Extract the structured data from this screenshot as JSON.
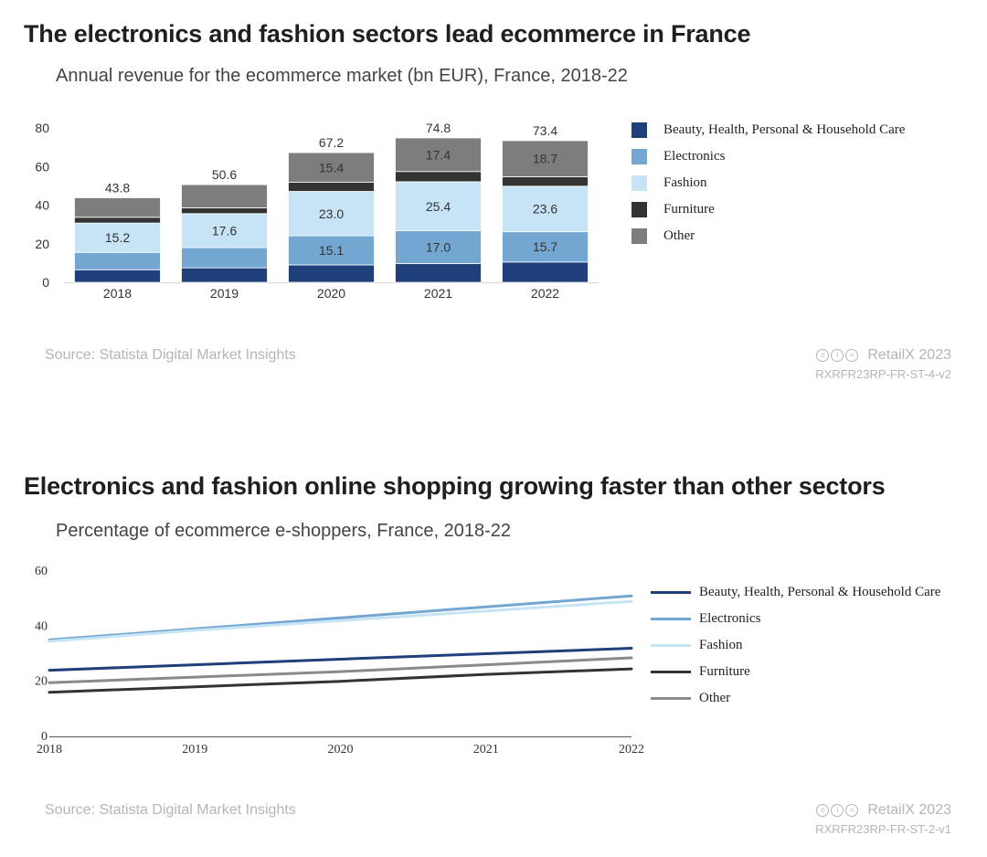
{
  "charts": [
    {
      "title": "The electronics and fashion sectors lead ecommerce in France",
      "subtitle": "Annual revenue for the ecommerce market (bn EUR), France, 2018-22",
      "source": "Source: Statista Digital Market Insights",
      "brand": "RetailX 2023",
      "code": "RXRFR23RP-FR-ST-4-v2"
    },
    {
      "title": "Electronics and fashion online shopping growing faster than other sectors",
      "subtitle": "Percentage of ecommerce e-shoppers, France, 2018-22",
      "source": "Source: Statista Digital Market Insights",
      "brand": "RetailX 2023",
      "code": "RXRFR23RP-FR-ST-2-v1"
    }
  ],
  "chart_data": [
    {
      "type": "bar",
      "stacked": true,
      "title": "The electronics and fashion sectors lead ecommerce in France",
      "subtitle": "Annual revenue for the ecommerce market (bn EUR), France, 2018-22",
      "categories": [
        "2018",
        "2019",
        "2020",
        "2021",
        "2022"
      ],
      "ylim": [
        0,
        80
      ],
      "yticks": [
        0,
        20,
        40,
        60,
        80
      ],
      "grid": false,
      "legend_position": "right",
      "totals": [
        43.8,
        50.6,
        67.2,
        74.8,
        73.4
      ],
      "total_labels": [
        "43.8",
        "50.6",
        "67.2",
        "74.8",
        "73.4"
      ],
      "series": [
        {
          "name": "Beauty, Health, Personal & Household Care",
          "color": "#1f3f7a",
          "values": [
            6.5,
            7.5,
            9.0,
            9.7,
            10.5
          ],
          "labels": [
            "",
            "",
            "",
            "",
            ""
          ]
        },
        {
          "name": "Electronics",
          "color": "#73a7d2",
          "values": [
            9.0,
            10.5,
            15.1,
            17.0,
            15.7
          ],
          "labels": [
            "",
            "",
            "15.1",
            "17.0",
            "15.7"
          ]
        },
        {
          "name": "Fashion",
          "color": "#c6e4f6",
          "values": [
            15.2,
            17.6,
            23.0,
            25.4,
            23.6
          ],
          "labels": [
            "15.2",
            "17.6",
            "23.0",
            "25.4",
            "23.6"
          ]
        },
        {
          "name": "Furniture",
          "color": "#333333",
          "values": [
            3.0,
            3.0,
            4.7,
            5.3,
            4.9
          ],
          "labels": [
            "",
            "",
            "",
            "",
            ""
          ]
        },
        {
          "name": "Other",
          "color": "#7d7d7d",
          "values": [
            10.1,
            12.0,
            15.4,
            17.4,
            18.7
          ],
          "labels": [
            "",
            "",
            "15.4",
            "17.4",
            "18.7"
          ]
        }
      ]
    },
    {
      "type": "line",
      "title": "Electronics and fashion online shopping growing faster than other sectors",
      "subtitle": "Percentage of ecommerce e-shoppers, France, 2018-22",
      "x": [
        "2018",
        "2019",
        "2020",
        "2021",
        "2022"
      ],
      "ylim": [
        0,
        60
      ],
      "yticks": [
        0,
        20,
        40,
        60
      ],
      "grid": false,
      "legend_position": "right",
      "series": [
        {
          "name": "Beauty, Health, Personal & Household Care",
          "color": "#1f3f7a",
          "values": [
            24,
            26,
            28,
            30,
            32
          ]
        },
        {
          "name": "Electronics",
          "color": "#73a7d2",
          "values": [
            35,
            39,
            43,
            47,
            51
          ]
        },
        {
          "name": "Fashion",
          "color": "#c6e4f6",
          "values": [
            34.5,
            38.5,
            42,
            45.5,
            49
          ]
        },
        {
          "name": "Furniture",
          "color": "#333333",
          "values": [
            16,
            18,
            20,
            22.5,
            24.5
          ]
        },
        {
          "name": "Other",
          "color": "#8a8a8a",
          "values": [
            19.5,
            21.5,
            23.5,
            26,
            28.5
          ]
        }
      ]
    }
  ]
}
